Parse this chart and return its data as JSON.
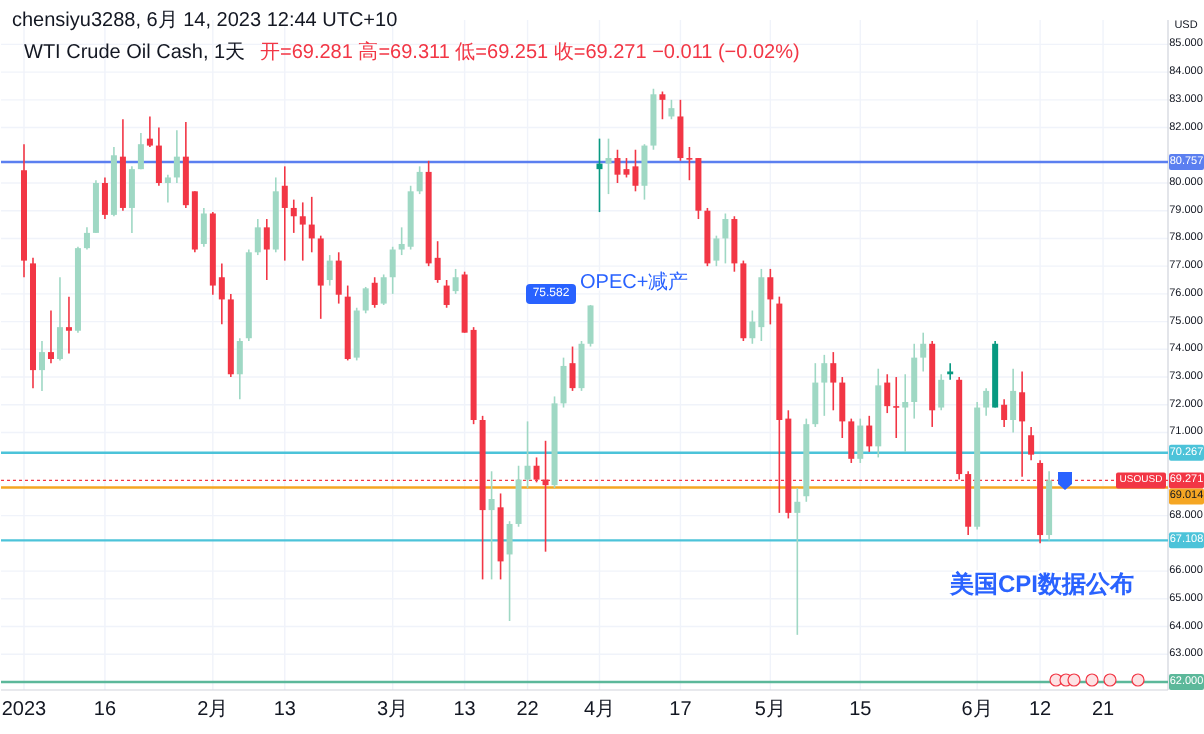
{
  "chart_data": {
    "type": "candlestick",
    "title": "WTI Crude Oil Cash, 1天",
    "subtitle": "开=69.281 高=69.311 低=69.251 收=69.271 −0.011 (−0.02%)",
    "annotations": [
      "chensiyu3288, 6月 14, 2023 12:44 UTC+10",
      "USD",
      "75.582",
      "OPEC+减产",
      "美国CPI数据公布",
      {
        "text": "USOUSD",
        "y": 69.271
      }
    ],
    "categories": [
      "2023",
      null,
      null,
      null,
      null,
      null,
      null,
      null,
      null,
      "16",
      null,
      null,
      null,
      null,
      null,
      null,
      null,
      null,
      null,
      null,
      null,
      "2月",
      null,
      null,
      null,
      null,
      null,
      null,
      null,
      "13",
      null,
      null,
      null,
      null,
      null,
      null,
      null,
      null,
      null,
      null,
      null,
      "3月",
      null,
      null,
      null,
      null,
      null,
      null,
      null,
      "13",
      null,
      null,
      null,
      null,
      null,
      null,
      "22",
      null,
      null,
      null,
      null,
      null,
      null,
      null,
      "4月",
      null,
      null,
      null,
      null,
      null,
      null,
      null,
      null,
      "17",
      null,
      null,
      null,
      null,
      null,
      null,
      null,
      null,
      null,
      "5月",
      null,
      null,
      null,
      null,
      null,
      null,
      null,
      null,
      null,
      "15",
      null,
      null,
      null,
      null,
      null,
      null,
      null,
      null,
      null,
      null,
      null,
      null,
      "6月",
      null,
      null,
      null,
      null,
      null,
      null,
      "12",
      null,
      null,
      null,
      null,
      null,
      null,
      "21",
      null,
      null,
      null,
      null,
      null,
      null,
      null
    ],
    "ohlc": [
      [
        80.46,
        81.4,
        76.6,
        77.2
      ],
      [
        77.1,
        77.3,
        72.6,
        73.25
      ],
      [
        73.25,
        74.3,
        72.5,
        73.9
      ],
      [
        73.9,
        75.4,
        73.5,
        73.65
      ],
      [
        73.65,
        76.6,
        73.6,
        74.8
      ],
      [
        74.8,
        75.9,
        73.85,
        74.67
      ],
      [
        74.67,
        77.7,
        74.6,
        77.65
      ],
      [
        77.65,
        78.4,
        77.6,
        78.2
      ],
      [
        78.2,
        80.1,
        78.2,
        80.0
      ],
      [
        80.0,
        80.2,
        78.7,
        78.85
      ],
      [
        78.85,
        81.3,
        78.8,
        81.0
      ],
      [
        80.95,
        82.3,
        79.0,
        79.1
      ],
      [
        79.1,
        80.6,
        78.2,
        80.5
      ],
      [
        80.5,
        81.8,
        80.5,
        81.4
      ],
      [
        81.6,
        82.4,
        81.3,
        81.35
      ],
      [
        81.35,
        82.0,
        79.9,
        80.0
      ],
      [
        80.0,
        80.3,
        79.3,
        80.2
      ],
      [
        80.2,
        81.9,
        80.0,
        80.95
      ],
      [
        80.95,
        82.2,
        79.1,
        79.2
      ],
      [
        79.7,
        79.7,
        77.5,
        77.6
      ],
      [
        77.8,
        79.1,
        77.7,
        78.9
      ],
      [
        78.9,
        78.95,
        75.97,
        76.3
      ],
      [
        76.6,
        77.1,
        74.9,
        75.8
      ],
      [
        75.8,
        76.0,
        73.0,
        73.1
      ],
      [
        73.1,
        74.4,
        72.2,
        74.3
      ],
      [
        74.4,
        77.6,
        74.3,
        77.5
      ],
      [
        77.5,
        78.7,
        77.4,
        78.4
      ],
      [
        78.4,
        78.7,
        76.5,
        77.6
      ],
      [
        77.6,
        80.2,
        77.5,
        79.7
      ],
      [
        79.9,
        80.6,
        77.2,
        79.1
      ],
      [
        79.1,
        79.4,
        78.2,
        78.8
      ],
      [
        78.8,
        79.3,
        77.2,
        78.5
      ],
      [
        78.5,
        79.5,
        77.5,
        78.0
      ],
      [
        78.0,
        78.1,
        75.1,
        76.3
      ],
      [
        76.5,
        77.4,
        76.3,
        77.2
      ],
      [
        77.2,
        77.5,
        75.65,
        75.97
      ],
      [
        75.9,
        76.3,
        73.6,
        73.65
      ],
      [
        73.7,
        75.5,
        73.6,
        75.4
      ],
      [
        75.4,
        76.25,
        75.3,
        76.2
      ],
      [
        76.4,
        76.6,
        75.5,
        75.6
      ],
      [
        75.65,
        76.7,
        75.6,
        76.6
      ],
      [
        76.6,
        77.7,
        76.0,
        77.6
      ],
      [
        77.6,
        78.4,
        77.4,
        77.8
      ],
      [
        77.7,
        79.9,
        77.6,
        79.7
      ],
      [
        79.7,
        80.6,
        79.6,
        80.4
      ],
      [
        80.4,
        80.8,
        77.0,
        77.1
      ],
      [
        77.3,
        77.9,
        76.4,
        76.5
      ],
      [
        76.3,
        76.5,
        75.5,
        75.6
      ],
      [
        76.1,
        76.9,
        76.0,
        76.6
      ],
      [
        76.7,
        76.8,
        74.6,
        74.6
      ],
      [
        74.7,
        74.8,
        71.3,
        71.45
      ],
      [
        71.45,
        71.6,
        65.7,
        68.2
      ],
      [
        68.2,
        69.6,
        65.7,
        68.6
      ],
      [
        68.3,
        68.8,
        65.7,
        66.35
      ],
      [
        66.6,
        67.8,
        64.2,
        67.7
      ],
      [
        67.7,
        69.8,
        67.6,
        69.3
      ],
      [
        69.3,
        71.4,
        69.0,
        69.8
      ],
      [
        69.8,
        70.1,
        69.2,
        69.3
      ],
      [
        69.3,
        70.7,
        66.7,
        69.1
      ],
      [
        69.1,
        72.3,
        69.0,
        72.05
      ],
      [
        72.05,
        73.7,
        71.9,
        73.4
      ],
      [
        73.5,
        74.1,
        72.5,
        72.6
      ],
      [
        72.6,
        74.3,
        72.5,
        74.2
      ],
      [
        74.2,
        75.6,
        74.1,
        75.582
      ],
      [
        80.5,
        81.6,
        78.95,
        80.7
      ],
      [
        80.7,
        81.6,
        79.6,
        80.9
      ],
      [
        80.9,
        81.2,
        80.0,
        80.3
      ],
      [
        80.5,
        80.9,
        80.2,
        80.3
      ],
      [
        80.6,
        81.2,
        79.7,
        79.9
      ],
      [
        79.9,
        81.4,
        79.4,
        81.35
      ],
      [
        81.35,
        83.4,
        81.2,
        83.2
      ],
      [
        83.2,
        83.3,
        82.3,
        83.0
      ],
      [
        82.4,
        83.0,
        82.3,
        82.7
      ],
      [
        82.4,
        83.0,
        80.8,
        80.9
      ],
      [
        80.9,
        81.3,
        80.1,
        80.85
      ],
      [
        80.9,
        80.9,
        78.7,
        79.0
      ],
      [
        79.0,
        79.1,
        77.0,
        77.1
      ],
      [
        77.2,
        78.1,
        77.0,
        78.0
      ],
      [
        78.0,
        78.9,
        77.1,
        78.7
      ],
      [
        78.7,
        78.8,
        76.8,
        77.1
      ],
      [
        77.1,
        77.2,
        74.3,
        74.4
      ],
      [
        74.4,
        75.4,
        74.2,
        75.0
      ],
      [
        74.8,
        76.9,
        74.3,
        76.6
      ],
      [
        76.6,
        76.9,
        74.9,
        75.8
      ],
      [
        75.65,
        75.9,
        68.1,
        71.45
      ],
      [
        71.5,
        71.8,
        67.9,
        68.1
      ],
      [
        68.1,
        69.0,
        63.7,
        68.5
      ],
      [
        68.7,
        71.5,
        68.5,
        71.3
      ],
      [
        71.3,
        73.5,
        71.2,
        72.8
      ],
      [
        72.8,
        73.8,
        71.6,
        73.5
      ],
      [
        73.5,
        73.9,
        71.8,
        72.8
      ],
      [
        72.8,
        73.0,
        70.8,
        71.4
      ],
      [
        71.4,
        71.5,
        69.9,
        70.05
      ],
      [
        70.05,
        71.5,
        69.9,
        71.25
      ],
      [
        71.25,
        71.6,
        70.3,
        70.5
      ],
      [
        70.5,
        73.3,
        70.1,
        72.7
      ],
      [
        72.8,
        73.1,
        71.7,
        71.95
      ],
      [
        71.95,
        73.0,
        70.8,
        71.9
      ],
      [
        71.9,
        73.1,
        70.3,
        72.1
      ],
      [
        72.1,
        74.2,
        71.5,
        73.7
      ],
      [
        73.7,
        74.6,
        73.2,
        74.2
      ],
      [
        74.2,
        74.3,
        71.2,
        71.8
      ],
      [
        71.9,
        73.1,
        71.8,
        72.9
      ],
      [
        73.1,
        73.5,
        72.9,
        73.2
      ],
      [
        72.9,
        73.0,
        69.3,
        69.5
      ],
      [
        69.5,
        69.6,
        67.3,
        67.6
      ],
      [
        67.6,
        72.1,
        67.5,
        71.9
      ],
      [
        71.9,
        72.6,
        71.6,
        72.5
      ],
      [
        71.9,
        74.3,
        71.9,
        74.2
      ],
      [
        72.0,
        72.2,
        71.2,
        71.45
      ],
      [
        71.45,
        73.3,
        71.0,
        72.5
      ],
      [
        72.45,
        73.2,
        69.4,
        71.4
      ],
      [
        70.9,
        71.2,
        70.0,
        70.2
      ],
      [
        69.9,
        70.0,
        67.0,
        67.3
      ],
      [
        67.3,
        69.6,
        67.1,
        69.271
      ],
      null,
      null,
      null,
      null,
      null,
      null,
      null,
      null,
      null,
      null,
      null,
      null,
      null
    ],
    "colors": [
      "#f23645",
      "#f23645",
      "#9fd8c4",
      "#f23645",
      "#9fd8c4",
      "#f23645",
      "#9fd8c4",
      "#9fd8c4",
      "#9fd8c4",
      "#f23645",
      "#9fd8c4",
      "#f23645",
      "#9fd8c4",
      "#9fd8c4",
      "#f23645",
      "#f23645",
      "#9fd8c4",
      "#9fd8c4",
      "#f23645",
      "#f23645",
      "#9fd8c4",
      "#f23645",
      "#f23645",
      "#f23645",
      "#9fd8c4",
      "#9fd8c4",
      "#9fd8c4",
      "#f23645",
      "#9fd8c4",
      "#f23645",
      "#f23645",
      "#f23645",
      "#f23645",
      "#f23645",
      "#9fd8c4",
      "#f23645",
      "#f23645",
      "#9fd8c4",
      "#9fd8c4",
      "#f23645",
      "#9fd8c4",
      "#9fd8c4",
      "#9fd8c4",
      "#9fd8c4",
      "#9fd8c4",
      "#f23645",
      "#f23645",
      "#f23645",
      "#9fd8c4",
      "#f23645",
      "#f23645",
      "#f23645",
      "#9fd8c4",
      "#f23645",
      "#9fd8c4",
      "#9fd8c4",
      "#9fd8c4",
      "#f23645",
      "#f23645",
      "#9fd8c4",
      "#9fd8c4",
      "#f23645",
      "#9fd8c4",
      "#9fd8c4",
      "#089981",
      "#9fd8c4",
      "#f23645",
      "#f23645",
      "#f23645",
      "#9fd8c4",
      "#9fd8c4",
      "#f23645",
      "#9fd8c4",
      "#f23645",
      "#f23645",
      "#f23645",
      "#f23645",
      "#9fd8c4",
      "#9fd8c4",
      "#f23645",
      "#f23645",
      "#9fd8c4",
      "#9fd8c4",
      "#f23645",
      "#f23645",
      "#f23645",
      "#9fd8c4",
      "#9fd8c4",
      "#9fd8c4",
      "#9fd8c4",
      "#f23645",
      "#f23645",
      "#f23645",
      "#9fd8c4",
      "#f23645",
      "#9fd8c4",
      "#f23645",
      "#f23645",
      "#9fd8c4",
      "#9fd8c4",
      "#9fd8c4",
      "#f23645",
      "#9fd8c4",
      "#089981",
      "#f23645",
      "#f23645",
      "#9fd8c4",
      "#9fd8c4",
      "#089981",
      "#f23645",
      "#9fd8c4",
      "#f23645",
      "#f23645",
      "#f23645",
      "#9fd8c4",
      null,
      null,
      null,
      null,
      null,
      null,
      null,
      null,
      null,
      null,
      null,
      null,
      null
    ],
    "ylim": [
      61.71,
      85.88
    ],
    "yticks": [
      {
        "value": 63,
        "label": "63.000"
      },
      {
        "value": 64,
        "label": "64.000"
      },
      {
        "value": 65,
        "label": "65.000"
      },
      {
        "value": 66,
        "label": "66.000"
      },
      {
        "value": 68,
        "label": "68.000"
      },
      {
        "value": 71,
        "label": "71.000"
      },
      {
        "value": 72,
        "label": "72.000"
      },
      {
        "value": 73,
        "label": "73.000"
      },
      {
        "value": 74,
        "label": "74.000"
      },
      {
        "value": 75,
        "label": "75.000"
      },
      {
        "value": 76,
        "label": "76.000"
      },
      {
        "value": 77,
        "label": "77.000"
      },
      {
        "value": 78,
        "label": "78.000"
      },
      {
        "value": 79,
        "label": "79.000"
      },
      {
        "value": 80,
        "label": "80.000"
      },
      {
        "value": 82,
        "label": "82.000"
      },
      {
        "value": 83,
        "label": "83.000"
      },
      {
        "value": 84,
        "label": "84.000"
      },
      {
        "value": 85,
        "label": "85.000"
      }
    ],
    "grid": true,
    "ref_lines": [
      {
        "axis": "y",
        "value": 80.757,
        "label": "80.757",
        "color": "#5b7ff0"
      },
      {
        "axis": "y",
        "value": 70.267,
        "label": "70.267",
        "color": "#4cc3d9"
      },
      {
        "axis": "y",
        "value": 69.271,
        "label": "69.271",
        "color": "#f23645",
        "line_style": "dotted"
      },
      {
        "axis": "y",
        "value": 69.014,
        "label": "69.014",
        "color": "#f5a623"
      },
      {
        "axis": "y",
        "value": 67.108,
        "label": "67.108",
        "color": "#4cc3d9"
      },
      {
        "axis": "y",
        "value": 62.0,
        "label": "62.000",
        "color": "#5cb89a"
      }
    ]
  }
}
